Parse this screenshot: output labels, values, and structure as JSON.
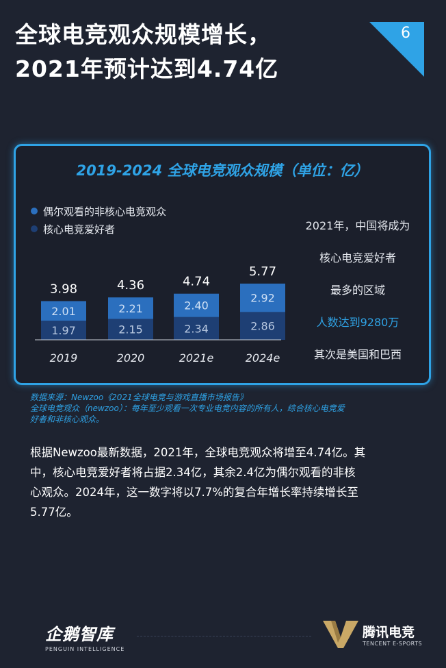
{
  "title": {
    "line1": "全球电竞观众规模增长，",
    "line2": "2021年预计达到4.74亿"
  },
  "page_number": "6",
  "chart_data": {
    "type": "bar",
    "title": "2019-2024 全球电竞观众规模（单位：亿）",
    "categories": [
      "2019",
      "2020",
      "2021e",
      "2024e"
    ],
    "totals": [
      "3.98",
      "4.36",
      "4.74",
      "5.77"
    ],
    "series": [
      {
        "name": "核心电竞爱好者",
        "values": [
          1.97,
          2.15,
          2.34,
          2.86
        ],
        "labels": [
          "1.97",
          "2.15",
          "2.34",
          "2.86"
        ],
        "color": "#1e3f74"
      },
      {
        "name": "偶尔观看的非核心电竞观众",
        "values": [
          2.01,
          2.21,
          2.4,
          2.92
        ],
        "labels": [
          "2.01",
          "2.21",
          "2.40",
          "2.92"
        ],
        "color": "#2b6fbe"
      }
    ],
    "stacked": true,
    "legend_position": "top-left",
    "grid": false
  },
  "legend": [
    {
      "label": "偶尔观看的非核心电竞观众",
      "color": "#2b6fbe"
    },
    {
      "label": "核心电竞爱好者",
      "color": "#1e3f74"
    }
  ],
  "note": {
    "line1": "2021年，中国将成为",
    "line2": "核心电竞爱好者",
    "line3": "最多的区域",
    "line4": "人数达到9280万",
    "line5": "其次是美国和巴西"
  },
  "source": {
    "line1": "数据来源：Newzoo《2021全球电竞与游戏直播市场报告》",
    "line2": "全球电竞观众（newzoo）：每年至少观看一次专业电竞内容的所有人，综合核心电竞爱",
    "line3": "好者和非核心观众。"
  },
  "body": {
    "line1": "根据Newzoo最新数据，2021年，全球电竞观众将增至4.74亿。其",
    "line2": "中，核心电竞爱好者将占据2.34亿，其余2.4亿为偶尔观看的非核",
    "line3": "心观众。2024年，这一数字将以7.7%的复合年增长率持续增长至",
    "line4": "5.77亿。"
  },
  "footer": {
    "left_logo": "企鹅智库",
    "left_sub": "PENGUIN INTELLIGENCE",
    "right_logo": "腾讯电竞",
    "right_sub": "TENCENT E-SPORTS"
  },
  "colors": {
    "background": "#1e2330",
    "accent": "#2fa3e6"
  }
}
